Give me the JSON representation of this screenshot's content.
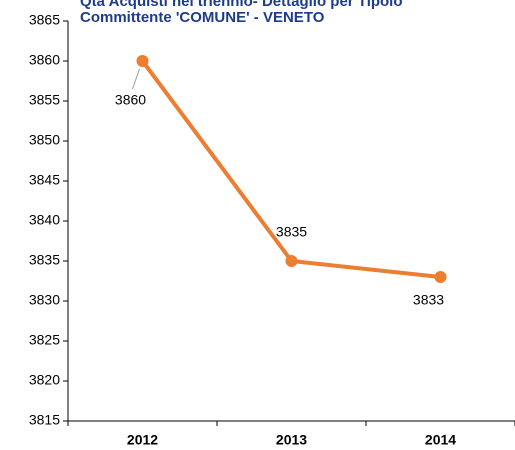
{
  "chart_data": {
    "type": "line",
    "title": [
      "Qtà Acquisti nel triennio- Dettaglio per Tipolo",
      "Committente 'COMUNE' - VENETO"
    ],
    "categories": [
      "2012",
      "2013",
      "2014"
    ],
    "series": [
      {
        "name": "Qtà",
        "color": "#ed7d31",
        "values": [
          3860,
          3835,
          3833
        ]
      }
    ],
    "ylim": [
      3815,
      3865
    ],
    "yticks": [
      3815,
      3820,
      3825,
      3830,
      3835,
      3840,
      3845,
      3850,
      3855,
      3860,
      3865
    ],
    "grid": false
  }
}
